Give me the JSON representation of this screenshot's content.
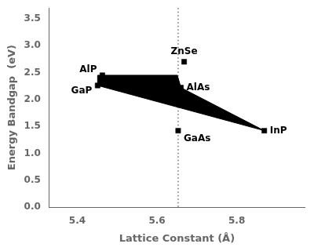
{
  "chart_data": {
    "type": "scatter",
    "xlabel": "Lattice Constant (Å)",
    "ylabel": "Energy Bandgap  (eV)",
    "xlim": [
      5.33,
      5.97
    ],
    "ylim": [
      0.0,
      3.7
    ],
    "xticks": [
      5.4,
      5.6,
      5.8
    ],
    "yticks": [
      {
        "value": 0,
        "label": "0.0"
      },
      0.5,
      {
        "value": 1,
        "label": "1.0"
      },
      1.5,
      {
        "value": 2,
        "label": "2.0"
      },
      2.5,
      {
        "value": 3,
        "label": "3.0"
      },
      3.5
    ],
    "grid": false,
    "series": [
      {
        "type": "area",
        "color": "#000000",
        "x": [
          5.451,
          5.651,
          5.66,
          5.869,
          5.451
        ],
        "values": [
          2.45,
          2.45,
          2.22,
          1.42,
          2.26
        ]
      },
      {
        "type": "scatter",
        "marker": "square",
        "color": "#000000",
        "x": [
          5.451,
          5.463,
          5.653,
          5.668,
          5.66,
          5.869
        ],
        "values": [
          2.26,
          2.45,
          1.42,
          2.7,
          2.22,
          1.42
        ],
        "labels": [
          "GaP",
          "AlP",
          "GaAs",
          "ZnSe",
          "AlAs",
          "InP"
        ]
      }
    ],
    "annotations": [
      {
        "type": "vline",
        "x": 5.653,
        "line_style": "dotted"
      }
    ]
  }
}
